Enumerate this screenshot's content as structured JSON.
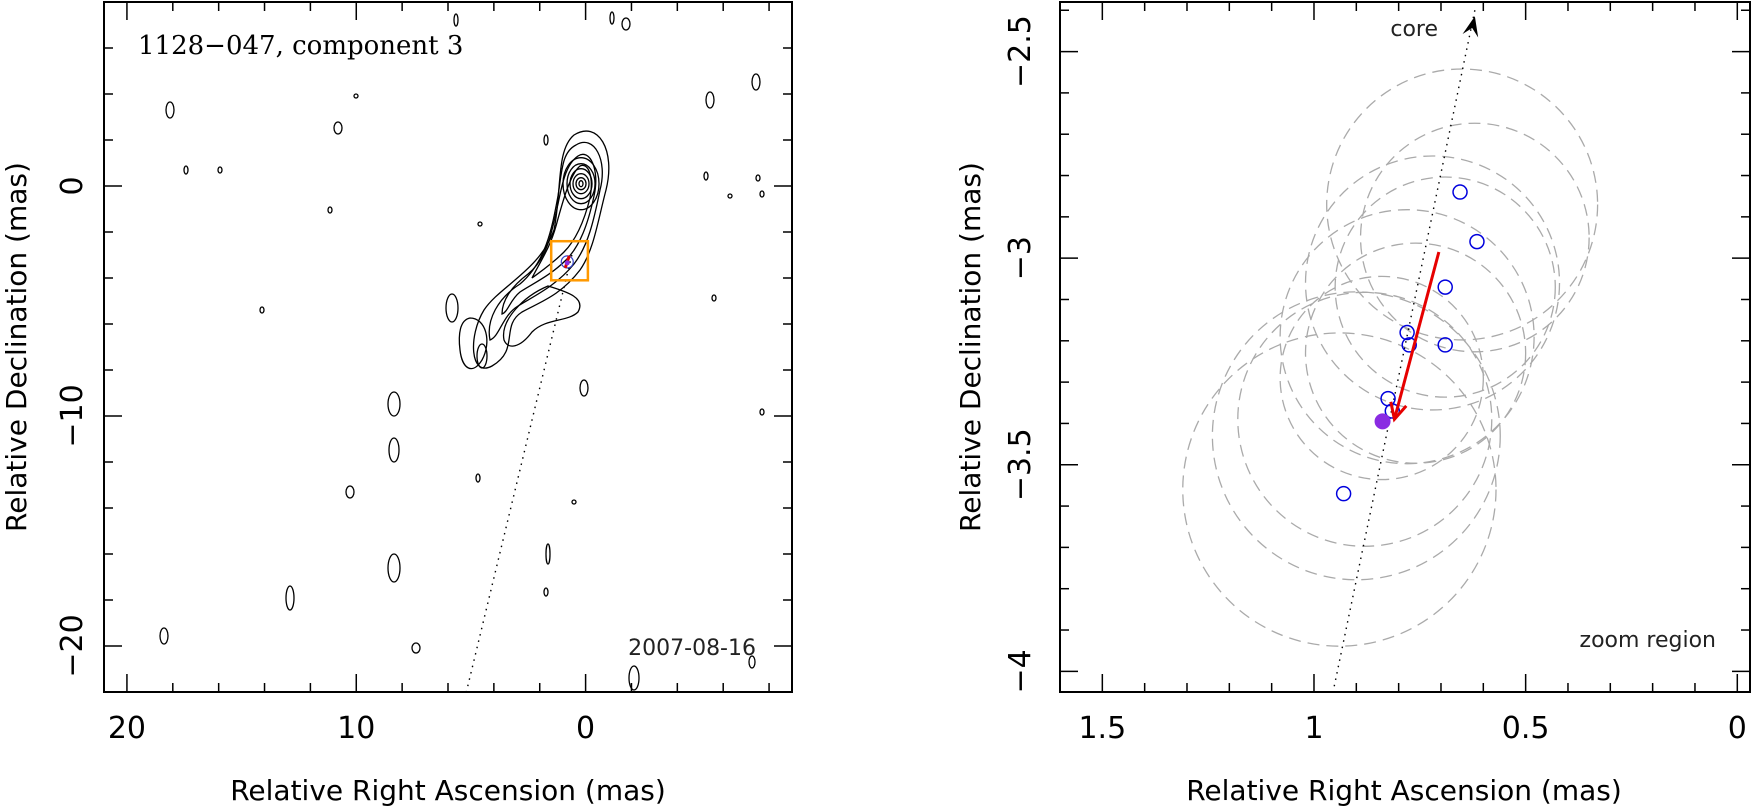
{
  "chart_data": [
    {
      "type": "scatter",
      "title": "1128−047, component 3",
      "epoch": "2007-08-16",
      "xlabel": "Relative Right Ascension (mas)",
      "ylabel": "Relative Declination (mas)",
      "xlim": [
        21,
        -9
      ],
      "ylim": [
        -22,
        8
      ],
      "x_ticks": [
        20,
        10,
        0
      ],
      "x_tick_labels": [
        "20",
        "10",
        "0"
      ],
      "y_ticks": [
        0,
        -10,
        -20
      ],
      "y_tick_labels": [
        "0",
        "−10",
        "−20"
      ],
      "x_minor_step": 2,
      "y_minor_step": 2,
      "jet_axis_line": {
        "from": [
          0.6,
          -3.0
        ],
        "to": [
          5.2,
          -22
        ]
      },
      "zoom_box": {
        "x": [
          1.5,
          -0.1
        ],
        "y": [
          -2.4,
          -4.1
        ],
        "color": "#ff9900"
      },
      "component_marker": {
        "x": 0.8,
        "y": -3.3,
        "color": "#dd0000"
      },
      "contour_color": "#000000"
    },
    {
      "type": "scatter",
      "annotation_core": "core",
      "annotation_zoom": "zoom region",
      "xlabel": "Relative Right Ascension (mas)",
      "ylabel": "Relative Declination (mas)",
      "xlim": [
        1.6,
        -0.03
      ],
      "ylim": [
        -4.05,
        -2.38
      ],
      "x_ticks": [
        1.5,
        1,
        0.5,
        0
      ],
      "x_tick_labels": [
        "1.5",
        "1",
        "0.5",
        "0"
      ],
      "y_ticks": [
        -2.5,
        -3,
        -3.5,
        -4
      ],
      "y_tick_labels": [
        "−2.5",
        "−3",
        "−3.5",
        "−4"
      ],
      "x_minor_step": 0.1,
      "y_minor_step": 0.1,
      "component_positions": [
        {
          "x": 0.655,
          "y": -2.84
        },
        {
          "x": 0.615,
          "y": -2.96
        },
        {
          "x": 0.69,
          "y": -3.07
        },
        {
          "x": 0.78,
          "y": -3.18
        },
        {
          "x": 0.775,
          "y": -3.21
        },
        {
          "x": 0.69,
          "y": -3.21
        },
        {
          "x": 0.825,
          "y": -3.34
        },
        {
          "x": 0.815,
          "y": -3.37
        },
        {
          "x": 0.93,
          "y": -3.57
        }
      ],
      "reference_position": {
        "x": 0.838,
        "y": -3.395
      },
      "gaussian_sizes": [
        {
          "x": 0.62,
          "y": -2.95,
          "r": 0.27
        },
        {
          "x": 0.65,
          "y": -2.87,
          "r": 0.32
        },
        {
          "x": 0.72,
          "y": -3.06,
          "r": 0.3
        },
        {
          "x": 0.69,
          "y": -3.07,
          "r": 0.26
        },
        {
          "x": 0.78,
          "y": -3.19,
          "r": 0.3
        },
        {
          "x": 0.76,
          "y": -3.23,
          "r": 0.26
        },
        {
          "x": 0.88,
          "y": -3.39,
          "r": 0.3
        },
        {
          "x": 0.9,
          "y": -3.43,
          "r": 0.34
        },
        {
          "x": 0.94,
          "y": -3.56,
          "r": 0.37
        },
        {
          "x": 0.84,
          "y": -3.29,
          "r": 0.24
        }
      ],
      "direction_to_core": {
        "from": [
          0.885,
          -3.6
        ],
        "to": [
          0.62,
          -2.4
        ]
      },
      "jet_axis_line": {
        "from": [
          0.62,
          -2.4
        ],
        "to": [
          0.955,
          -4.05
        ]
      },
      "motion_vector": {
        "from": [
          0.705,
          -2.985
        ],
        "to": [
          0.81,
          -3.39
        ]
      },
      "colors": {
        "positions": "#0000dd",
        "reference": "#8a2be2",
        "vector": "#e60000",
        "sizes": "#aaaaaa",
        "axes": "#000000"
      }
    }
  ]
}
